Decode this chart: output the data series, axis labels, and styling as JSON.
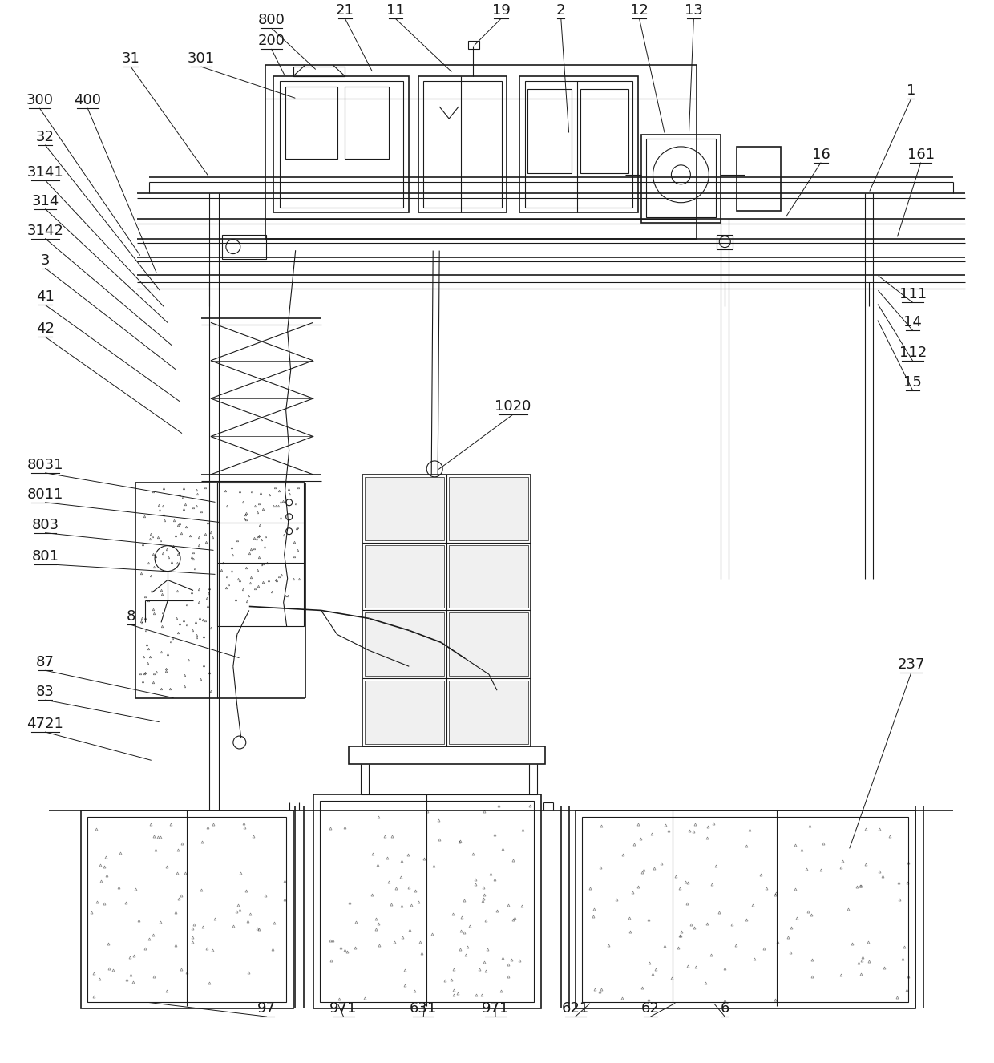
{
  "bg_color": "#ffffff",
  "line_color": "#1a1a1a",
  "lw": 0.8,
  "lw2": 1.2,
  "lw3": 1.6
}
